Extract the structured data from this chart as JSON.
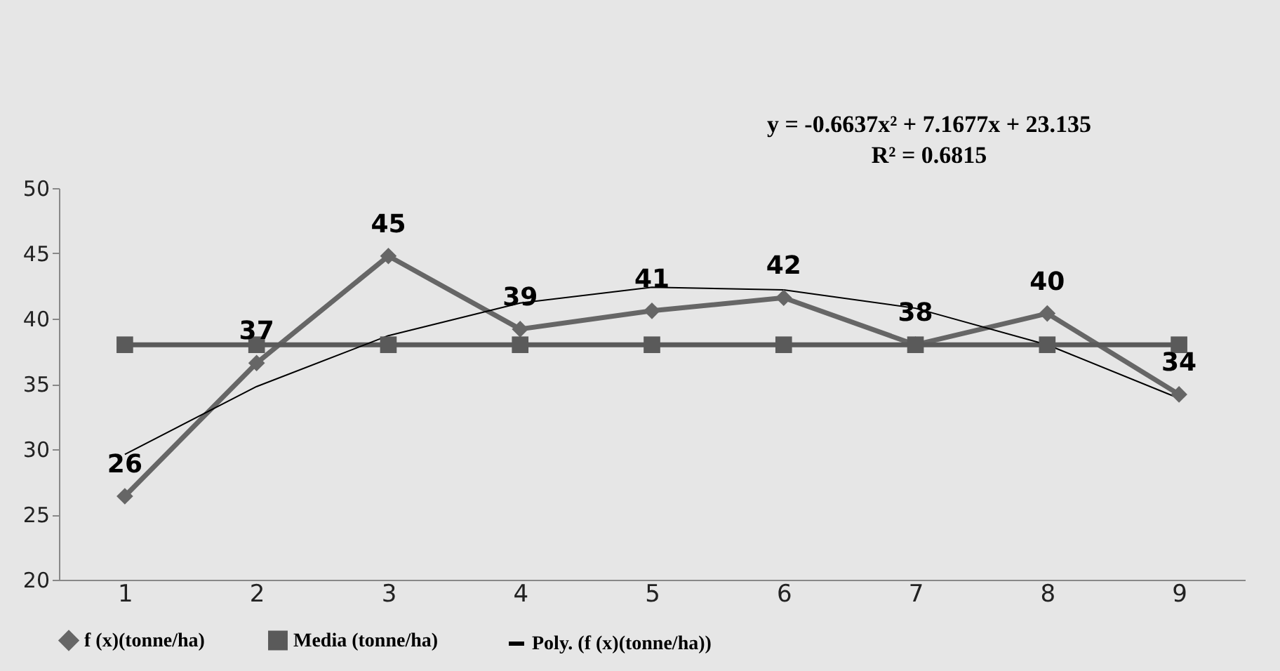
{
  "chart_data": {
    "type": "line",
    "categories": [
      "1",
      "2",
      "3",
      "4",
      "5",
      "6",
      "7",
      "8",
      "9"
    ],
    "series": [
      {
        "name": "f (x)(tonne/ha)",
        "color": "#666666",
        "marker": "diamond",
        "values": [
          26.4,
          36.6,
          44.8,
          39.2,
          40.6,
          41.6,
          38.0,
          40.4,
          34.2
        ],
        "value_labels": [
          "26",
          "37",
          "45",
          "39",
          "41",
          "42",
          "38",
          "40",
          "34"
        ]
      },
      {
        "name": "Media  (tonne/ha)",
        "color": "#5a5a5a",
        "marker": "square",
        "values": [
          38,
          38,
          38,
          38,
          38,
          38,
          38,
          38,
          38
        ]
      },
      {
        "name": "Poly. (f (x)(tonne/ha))",
        "color": "#000000",
        "marker": "none",
        "values": [
          29.6,
          34.8,
          38.7,
          41.2,
          42.4,
          42.2,
          40.8,
          38.0,
          33.9
        ]
      }
    ],
    "ylim": [
      20,
      50
    ],
    "yticks": [
      20,
      25,
      30,
      35,
      40,
      45,
      50
    ],
    "grid": false,
    "legend": "bottom",
    "line_style": "solid",
    "annotations": [
      "y = -0.6637x² + 7.1677x + 23.135",
      "R² = 0.6815"
    ]
  }
}
